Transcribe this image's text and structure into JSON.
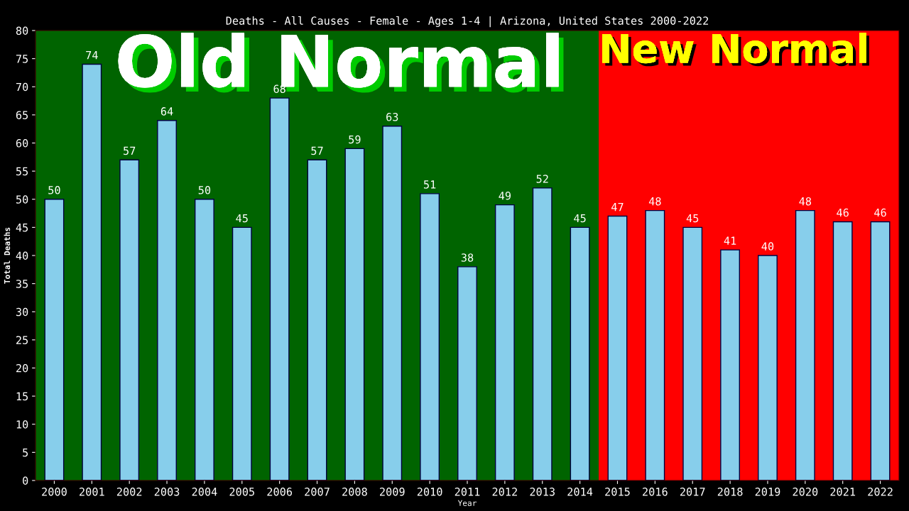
{
  "chart_data": {
    "type": "bar",
    "title": "Deaths - All Causes - Female - Ages 1-4 | Arizona, United States 2000-2022",
    "xlabel": "Year",
    "ylabel": "Total Deaths",
    "categories": [
      "2000",
      "2001",
      "2002",
      "2003",
      "2004",
      "2005",
      "2006",
      "2007",
      "2008",
      "2009",
      "2010",
      "2011",
      "2012",
      "2013",
      "2014",
      "2015",
      "2016",
      "2017",
      "2018",
      "2019",
      "2020",
      "2021",
      "2022"
    ],
    "values": [
      50,
      74,
      57,
      64,
      50,
      45,
      68,
      57,
      59,
      63,
      51,
      38,
      49,
      52,
      45,
      47,
      48,
      45,
      41,
      40,
      48,
      46,
      46
    ],
    "color": "#87ceeb",
    "data_labels": true,
    "ylim": [
      0,
      80
    ],
    "yticks": [
      0,
      5,
      10,
      15,
      20,
      25,
      30,
      35,
      40,
      45,
      50,
      55,
      60,
      65,
      70,
      75,
      80
    ],
    "grid": false,
    "bands": [
      {
        "axis": "x",
        "from": "2000",
        "to": "2014",
        "label": "Old Normal",
        "color": "#006400"
      },
      {
        "axis": "x",
        "from": "2015",
        "to": "2022",
        "label": "New Normal",
        "color": "#ff0000"
      }
    ]
  }
}
